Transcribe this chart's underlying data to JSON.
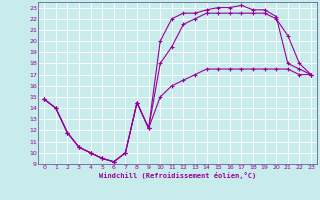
{
  "xlabel": "Windchill (Refroidissement éolien,°C)",
  "bg_color": "#c8ecec",
  "grid_color": "#aadddd",
  "line_color": "#990099",
  "xlim": [
    -0.5,
    23.5
  ],
  "ylim": [
    9,
    23.5
  ],
  "xticks": [
    0,
    1,
    2,
    3,
    4,
    5,
    6,
    7,
    8,
    9,
    10,
    11,
    12,
    13,
    14,
    15,
    16,
    17,
    18,
    19,
    20,
    21,
    22,
    23
  ],
  "yticks": [
    9,
    10,
    11,
    12,
    13,
    14,
    15,
    16,
    17,
    18,
    19,
    20,
    21,
    22,
    23
  ],
  "curve_bottom_x": [
    0,
    1,
    2,
    3,
    4,
    5,
    6,
    7,
    8,
    9,
    10,
    11,
    12,
    13,
    14,
    15,
    16,
    17,
    18,
    19,
    20,
    21,
    22,
    23
  ],
  "curve_bottom_y": [
    14.8,
    14.0,
    11.8,
    10.5,
    10.0,
    9.5,
    9.2,
    10.0,
    14.5,
    12.2,
    15.0,
    16.0,
    16.5,
    17.0,
    17.5,
    17.5,
    17.5,
    17.5,
    17.5,
    17.5,
    17.5,
    17.5,
    17.0,
    17.0
  ],
  "curve_mid_x": [
    0,
    1,
    2,
    3,
    4,
    5,
    6,
    7,
    8,
    9,
    10,
    11,
    12,
    13,
    14,
    15,
    16,
    17,
    18,
    19,
    20,
    21,
    22,
    23
  ],
  "curve_mid_y": [
    14.8,
    14.0,
    11.8,
    10.5,
    10.0,
    9.5,
    9.2,
    10.0,
    14.5,
    12.2,
    18.0,
    19.5,
    21.5,
    22.0,
    22.5,
    22.5,
    22.5,
    22.5,
    22.5,
    22.5,
    22.0,
    20.5,
    18.0,
    17.0
  ],
  "curve_top_x": [
    0,
    1,
    2,
    3,
    4,
    5,
    6,
    7,
    8,
    9,
    10,
    11,
    12,
    13,
    14,
    15,
    16,
    17,
    18,
    19,
    20,
    21,
    22,
    23
  ],
  "curve_top_y": [
    14.8,
    14.0,
    11.8,
    10.5,
    10.0,
    9.5,
    9.2,
    10.0,
    14.5,
    12.2,
    20.0,
    22.0,
    22.5,
    22.5,
    22.8,
    23.0,
    23.0,
    23.2,
    22.8,
    22.8,
    22.2,
    18.0,
    17.5,
    17.0
  ],
  "marker": "+"
}
